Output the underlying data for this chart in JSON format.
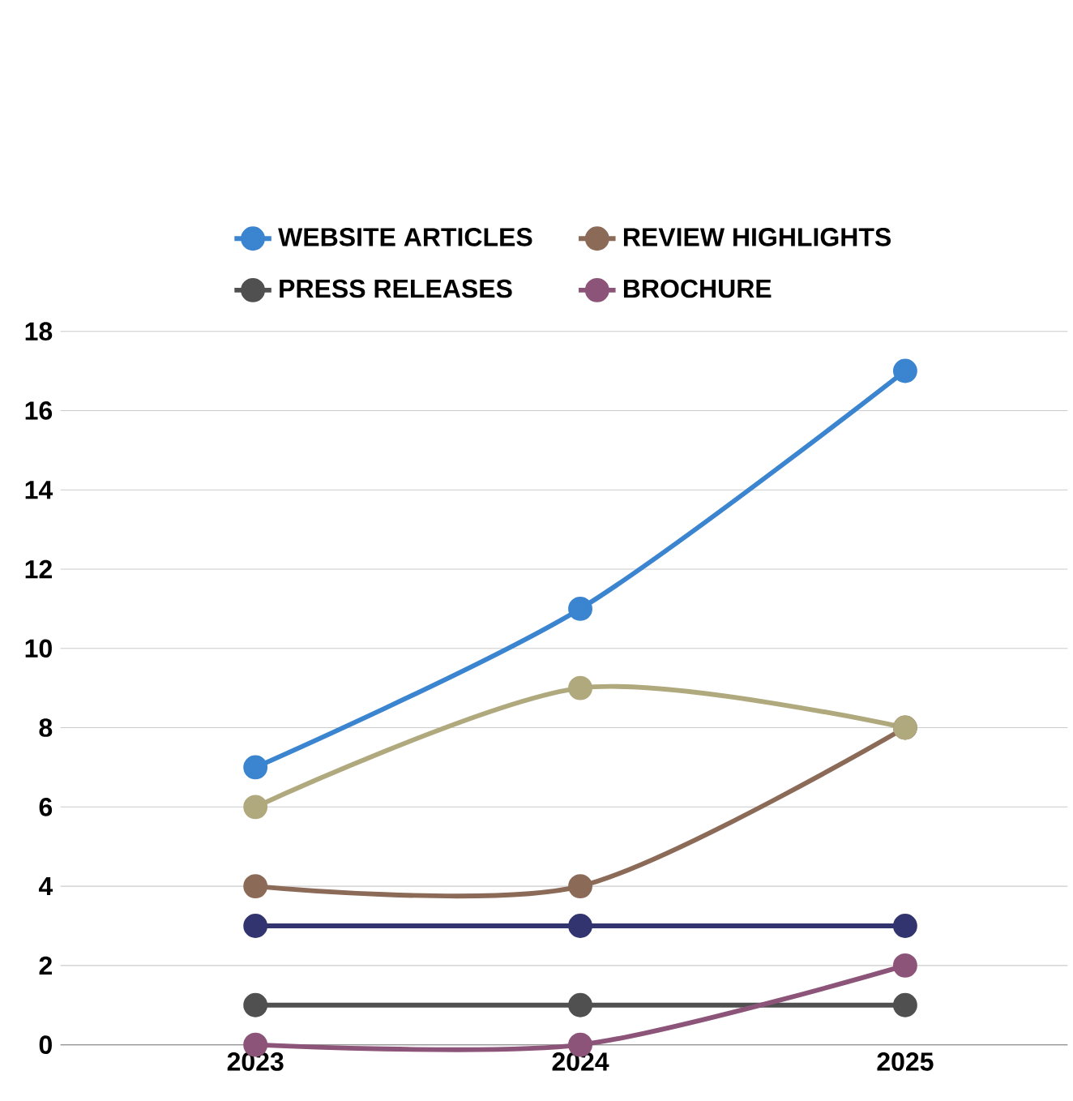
{
  "chart_data": {
    "type": "line",
    "categories": [
      "2023",
      "2024",
      "2025"
    ],
    "series": [
      {
        "name": "WEBSITE ARTICLES",
        "color": "#3a84d0",
        "values": [
          7,
          11,
          17
        ]
      },
      {
        "name": "REVIEW HIGHLIGHTS",
        "color": "#8c6a58",
        "values": [
          4,
          4,
          8
        ]
      },
      {
        "color": "#b0a97e",
        "values": [
          6,
          9,
          8
        ]
      },
      {
        "color": "#323470",
        "values": [
          3,
          3,
          3
        ]
      },
      {
        "name": "PRESS RELEASES",
        "color": "#505050",
        "values": [
          1,
          1,
          1
        ]
      },
      {
        "name": "BROCHURE",
        "color": "#8c5478",
        "values": [
          0,
          0,
          2
        ]
      }
    ],
    "ylim": [
      0,
      18
    ],
    "yticks": [
      0,
      2,
      4,
      6,
      8,
      10,
      12,
      14,
      16,
      18
    ],
    "grid": "y",
    "legend": "top",
    "marker": "circle",
    "line_style": "solid"
  }
}
